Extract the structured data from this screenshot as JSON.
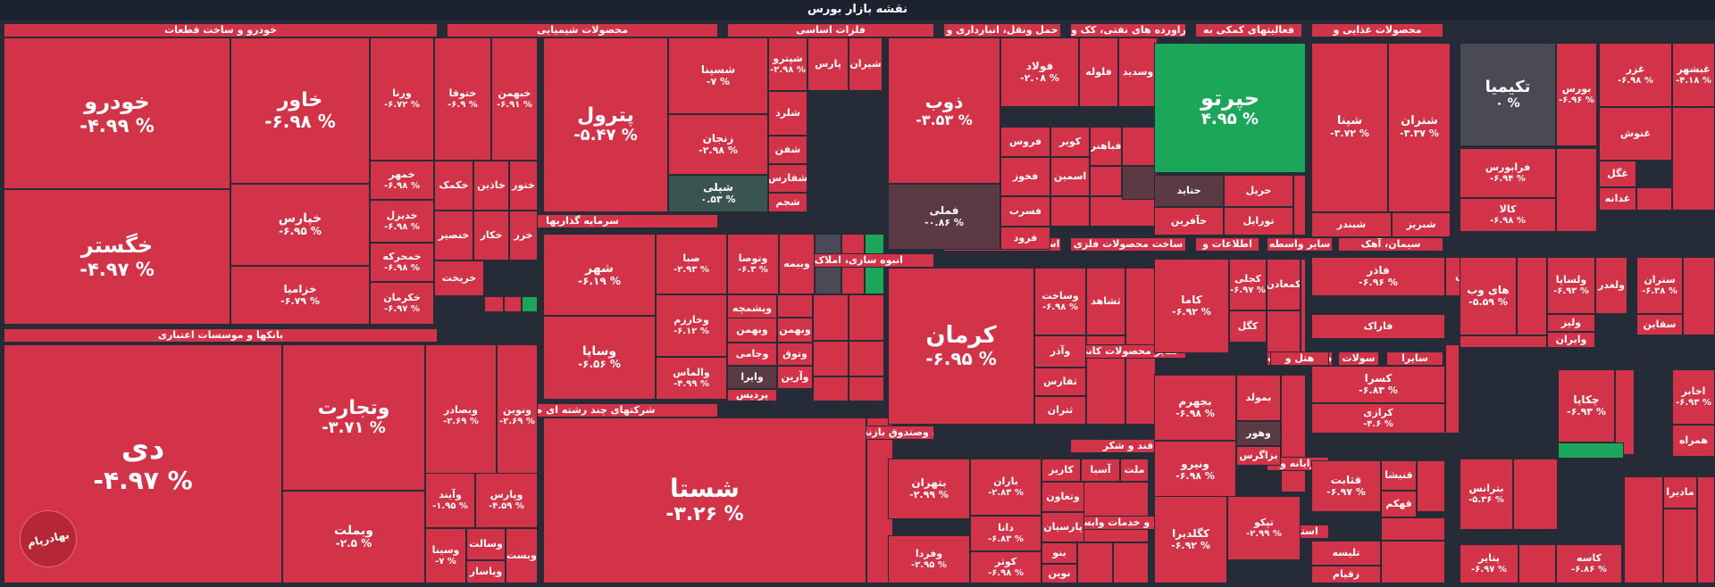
{
  "page_title": "نقشه بازار بورس",
  "brand": "بهادرپام",
  "colors": {
    "down": "#d33348",
    "up": "#1ca65a",
    "neutral": "#4a4a56",
    "dark": "#5b3a44",
    "teal": "#3a5550"
  },
  "chart_data": {
    "type": "treemap",
    "title": "نقشه بازار بورس",
    "sectors": [
      "خودرو و ساخت قطعات",
      "بانکها و موسسات اعتباری",
      "محصولات شیمیایی",
      "سرمایه گذاریها",
      "شرکتهای چند رشته ای صنعتی",
      "فلزات اساسی",
      "انبوه سازی، املاک و مستغلات",
      "بیمه وصندوق بازنشستگی به جزتامین اجتماعی",
      "حمل ونقل، انبارداری و",
      "استخراج کانه های فلزی",
      "عرضه برق، گاز، بخاروآب گرم",
      "ماشین آلات و تجهیزات",
      "فراورده های نفتی، کک و",
      "ساخت محصولات فلزی",
      "سایر محصولات کانی",
      "قند و شکر",
      "زراعت و خدمات وابسته",
      "فعالیتهای کمکی به",
      "اطلاعات و",
      "سایر واسطه",
      "مواد و محصولات",
      "ماشین آلات و",
      "لاستیک و",
      "محصولات غذایی و",
      "سیمان، آهک",
      "هتل و",
      "رایانه و",
      "استخراج",
      "سولات",
      "سایرا"
    ],
    "tiles": [
      {
        "name": "خودرو",
        "change": "-۴.۹۹ %"
      },
      {
        "name": "خگستر",
        "change": "-۴.۹۷ %"
      },
      {
        "name": "خاور",
        "change": "-۶.۹۸ %"
      },
      {
        "name": "خپارس",
        "change": "-۶.۹۵ %"
      },
      {
        "name": "خزامیا",
        "change": "-۶.۷۹ %"
      },
      {
        "name": "ورنا",
        "change": "-۶.۷۲ %"
      },
      {
        "name": "ختوقا",
        "change": "-۶.۹ %"
      },
      {
        "name": "خبهمن",
        "change": "-۶.۹۱ %"
      },
      {
        "name": "خمهر",
        "change": "-۶.۹۸ %"
      },
      {
        "name": "خکمک",
        "change": ""
      },
      {
        "name": "خاذین",
        "change": ""
      },
      {
        "name": "ختور",
        "change": ""
      },
      {
        "name": "خدیزل",
        "change": "-۶.۹۸ %"
      },
      {
        "name": "خمحرکه",
        "change": "-۶.۹۸ %"
      },
      {
        "name": "خکرمان",
        "change": "-۶.۹۷ %"
      },
      {
        "name": "خنصیر",
        "change": ""
      },
      {
        "name": "خکار",
        "change": ""
      },
      {
        "name": "خزر",
        "change": ""
      },
      {
        "name": "خریخت",
        "change": ""
      },
      {
        "name": "دی",
        "change": "-۴.۹۷ %"
      },
      {
        "name": "وتجارت",
        "change": "-۳.۷۱ %"
      },
      {
        "name": "وبملت",
        "change": "-۲.۵ %"
      },
      {
        "name": "وبصادر",
        "change": "-۲.۶۹ %"
      },
      {
        "name": "ونوین",
        "change": "-۲.۶۹ %"
      },
      {
        "name": "وآیند",
        "change": "-۱.۹۵ %"
      },
      {
        "name": "وپارس",
        "change": "-۴.۵۹ %"
      },
      {
        "name": "وسینا",
        "change": "-۷ %"
      },
      {
        "name": "وسالت",
        "change": ""
      },
      {
        "name": "وپاسار",
        "change": ""
      },
      {
        "name": "وبست",
        "change": ""
      },
      {
        "name": "پترول",
        "change": "-۵.۴۷ %"
      },
      {
        "name": "شسپنا",
        "change": "-۷ %"
      },
      {
        "name": "شپترو",
        "change": "-۲.۹۸ %"
      },
      {
        "name": "پارس",
        "change": ""
      },
      {
        "name": "شیران",
        "change": ""
      },
      {
        "name": "زنجان",
        "change": "-۲.۹۸ %"
      },
      {
        "name": "شلرد",
        "change": ""
      },
      {
        "name": "شفن",
        "change": ""
      },
      {
        "name": "شفارس",
        "change": ""
      },
      {
        "name": "شجم",
        "change": ""
      },
      {
        "name": "شپلی",
        "change": "۰.۵۳ %"
      },
      {
        "name": "شهر",
        "change": "-۶.۱۹ %"
      },
      {
        "name": "وساپا",
        "change": "-۶.۵۶ %"
      },
      {
        "name": "صبا",
        "change": "-۲.۹۳ %"
      },
      {
        "name": "وتوصا",
        "change": "-۶.۳ %"
      },
      {
        "name": "وبیمه",
        "change": ""
      },
      {
        "name": "وخارزم",
        "change": "-۶.۱۲ %"
      },
      {
        "name": "والماس",
        "change": "-۴.۹۹ %"
      },
      {
        "name": "وپشمچه",
        "change": ""
      },
      {
        "name": "وبهمن",
        "change": ""
      },
      {
        "name": "وجامی",
        "change": ""
      },
      {
        "name": "وبهمن",
        "change": ""
      },
      {
        "name": "وتوق",
        "change": ""
      },
      {
        "name": "وایرا",
        "change": ""
      },
      {
        "name": "وآرین",
        "change": ""
      },
      {
        "name": "پردیس",
        "change": ""
      },
      {
        "name": "شستا",
        "change": "-۳.۲۶ %"
      },
      {
        "name": "ذوب",
        "change": "-۳.۵۳ %"
      },
      {
        "name": "فولاد",
        "change": "-۲.۰۸ %"
      },
      {
        "name": "فلوله",
        "change": ""
      },
      {
        "name": "وسدید",
        "change": ""
      },
      {
        "name": "فروس",
        "change": ""
      },
      {
        "name": "کویر",
        "change": ""
      },
      {
        "name": "فباهنر",
        "change": ""
      },
      {
        "name": "فخوز",
        "change": ""
      },
      {
        "name": "فسرب",
        "change": ""
      },
      {
        "name": "فرود",
        "change": ""
      },
      {
        "name": "فملی",
        "change": "-۰.۸۶ %"
      },
      {
        "name": "اسمین",
        "change": ""
      },
      {
        "name": "کرمان",
        "change": "-۶.۹۵ %"
      },
      {
        "name": "وساخت",
        "change": "-۶.۹۸ %"
      },
      {
        "name": "ثشاهد",
        "change": ""
      },
      {
        "name": "وآذر",
        "change": ""
      },
      {
        "name": "ثفارس",
        "change": ""
      },
      {
        "name": "ثتران",
        "change": ""
      },
      {
        "name": "بتهران",
        "change": "-۲.۹۹ %"
      },
      {
        "name": "باران",
        "change": "-۲.۸۳ %"
      },
      {
        "name": "کاریز",
        "change": ""
      },
      {
        "name": "آسیا",
        "change": ""
      },
      {
        "name": "ملت",
        "change": ""
      },
      {
        "name": "دانا",
        "change": "-۶.۸۳ %"
      },
      {
        "name": "وتعاون",
        "change": ""
      },
      {
        "name": "پارسیان",
        "change": ""
      },
      {
        "name": "وفردا",
        "change": "-۲.۹۵ %"
      },
      {
        "name": "کوثر",
        "change": "-۶.۹۸ %"
      },
      {
        "name": "بنو",
        "change": ""
      },
      {
        "name": "نوین",
        "change": ""
      },
      {
        "name": "حپرتو",
        "change": "۴.۹۵ %"
      },
      {
        "name": "حتاید",
        "change": ""
      },
      {
        "name": "حریل",
        "change": ""
      },
      {
        "name": "حآفرین",
        "change": ""
      },
      {
        "name": "تورایل",
        "change": ""
      },
      {
        "name": "کاما",
        "change": "-۶.۹۲ %"
      },
      {
        "name": "کجلی",
        "change": "-۶.۹۷ %"
      },
      {
        "name": "کمعادن",
        "change": ""
      },
      {
        "name": "کگل",
        "change": ""
      },
      {
        "name": "بجهرم",
        "change": "-۶.۹۸ %"
      },
      {
        "name": "بمولد",
        "change": ""
      },
      {
        "name": "ونیرو",
        "change": "-۶.۹۸ %"
      },
      {
        "name": "وهور",
        "change": ""
      },
      {
        "name": "بزاگرس",
        "change": ""
      },
      {
        "name": "کگلدیرا",
        "change": "-۶.۹۲ %"
      },
      {
        "name": "تپکو",
        "change": "-۲.۹۹ %"
      },
      {
        "name": "شپنا",
        "change": "-۳.۷۲ %"
      },
      {
        "name": "شتران",
        "change": "-۳.۳۷ %"
      },
      {
        "name": "شبندر",
        "change": ""
      },
      {
        "name": "شبریز",
        "change": ""
      },
      {
        "name": "فاذر",
        "change": "-۶.۹۶ %"
      },
      {
        "name": "چدن",
        "change": ""
      },
      {
        "name": "فاراک",
        "change": ""
      },
      {
        "name": "کسرا",
        "change": "-۶.۸۳ %"
      },
      {
        "name": "کرازی",
        "change": "-۴.۶ %"
      },
      {
        "name": "قثابت",
        "change": "-۶.۹۷ %"
      },
      {
        "name": "قنیشا",
        "change": ""
      },
      {
        "name": "قهکم",
        "change": ""
      },
      {
        "name": "تلیسه",
        "change": ""
      },
      {
        "name": "زقیام",
        "change": ""
      },
      {
        "name": "تکیمیا",
        "change": "۰ %"
      },
      {
        "name": "بورس",
        "change": "-۶.۹۶ %"
      },
      {
        "name": "فرابورس",
        "change": "-۶.۹۴ %"
      },
      {
        "name": "کالا",
        "change": "-۶.۹۸ %"
      },
      {
        "name": "های وب",
        "change": "-۵.۵۹ %"
      },
      {
        "name": "ولساپا",
        "change": "-۶.۹۳ %"
      },
      {
        "name": "ولغدر",
        "change": ""
      },
      {
        "name": "ولیز",
        "change": ""
      },
      {
        "name": "وایران",
        "change": ""
      },
      {
        "name": "چکاپا",
        "change": "-۶.۹۳ %"
      },
      {
        "name": "بترانس",
        "change": "-۵.۳۶ %"
      },
      {
        "name": "پتایر",
        "change": "-۶.۹۷ %"
      },
      {
        "name": "کاسه",
        "change": "-۶.۸۶ %"
      },
      {
        "name": "غبشهر",
        "change": "-۴.۱۸ %"
      },
      {
        "name": "غزر",
        "change": "-۶.۹۸ %"
      },
      {
        "name": "غنوش",
        "change": ""
      },
      {
        "name": "غگل",
        "change": ""
      },
      {
        "name": "غدانه",
        "change": ""
      },
      {
        "name": "ستران",
        "change": "-۶.۳۸ %"
      },
      {
        "name": "سقاین",
        "change": ""
      },
      {
        "name": "اخابر",
        "change": "-۶.۹۳ %"
      },
      {
        "name": "همراه",
        "change": ""
      },
      {
        "name": "مادیرا",
        "change": ""
      }
    ]
  }
}
